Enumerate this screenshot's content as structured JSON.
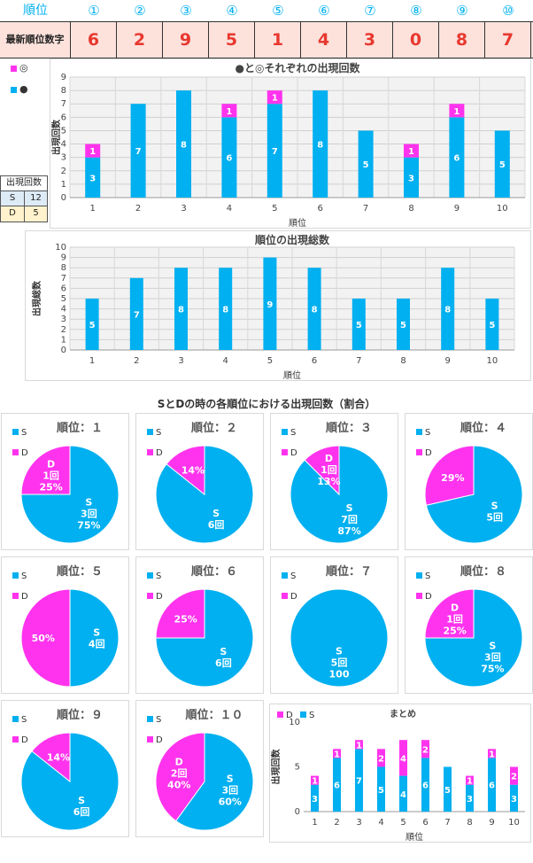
{
  "header": {
    "rank_label": "順位",
    "ranks": [
      "①",
      "②",
      "③",
      "④",
      "⑤",
      "⑥",
      "⑦",
      "⑧",
      "⑨",
      "⑩"
    ],
    "latest_label": "最新順位数字",
    "latest_digits": [
      "6",
      "2",
      "9",
      "5",
      "1",
      "4",
      "3",
      "0",
      "8",
      "7"
    ]
  },
  "colors": {
    "s": "#00b0f0",
    "d": "#ff33ee",
    "header_text": "#00b0f0",
    "digit": "#e8382f",
    "row_bg": "#fde2dc"
  },
  "side_table": {
    "header": "出現回数",
    "rows": [
      {
        "label": "S",
        "value": "12"
      },
      {
        "label": "D",
        "value": "5"
      }
    ]
  },
  "chart1_legend": {
    "d_symbol": "◎",
    "s_symbol": "●"
  },
  "pies_title": "SとDの時の各順位における出現回数（割合）",
  "pie_legend": {
    "s": "S",
    "d": "D"
  },
  "pies": [
    {
      "title": "順位：１",
      "s": 3,
      "d": 1,
      "s_label": [
        "S",
        "3回",
        "75%"
      ],
      "d_label": [
        "D",
        "1回",
        "25%"
      ]
    },
    {
      "title": "順位：２",
      "s": 6,
      "d": 1,
      "s_label": [
        "S",
        "6回"
      ],
      "d_label": [
        "14%"
      ]
    },
    {
      "title": "順位：３",
      "s": 7,
      "d": 1,
      "s_label": [
        "S",
        "7回",
        "87%"
      ],
      "d_label": [
        "D",
        "1回",
        "13%"
      ]
    },
    {
      "title": "順位：４",
      "s": 5,
      "d": 2,
      "s_label": [
        "S",
        "5回"
      ],
      "d_label": [
        "29%"
      ]
    },
    {
      "title": "順位：５",
      "s": 4,
      "d": 4,
      "s_label": [
        "S",
        "4回"
      ],
      "d_label": [
        "50%"
      ]
    },
    {
      "title": "順位：６",
      "s": 6,
      "d": 2,
      "s_label": [
        "S",
        "6回"
      ],
      "d_label": [
        "25%"
      ]
    },
    {
      "title": "順位：７",
      "s": 5,
      "d": 0,
      "s_label": [
        "S",
        "5回",
        "100"
      ],
      "d_label": []
    },
    {
      "title": "順位：８",
      "s": 3,
      "d": 1,
      "s_label": [
        "S",
        "3回",
        "75%"
      ],
      "d_label": [
        "D",
        "1回",
        "25%"
      ]
    },
    {
      "title": "順位：９",
      "s": 6,
      "d": 1,
      "s_label": [
        "S",
        "6回"
      ],
      "d_label": [
        "14%"
      ]
    },
    {
      "title": "順位：１０",
      "s": 3,
      "d": 2,
      "s_label": [
        "S",
        "3回",
        "60%"
      ],
      "d_label": [
        "D",
        "2回",
        "40%"
      ]
    }
  ],
  "chart_data": [
    {
      "type": "bar",
      "stacked": true,
      "title": "●と◎それぞれの出現回数",
      "xlabel": "順位",
      "ylabel": "出現回数",
      "categories": [
        "1",
        "2",
        "3",
        "4",
        "5",
        "6",
        "7",
        "8",
        "9",
        "10"
      ],
      "ylim": [
        0,
        9
      ],
      "grid": true,
      "legend": "top-left",
      "series": [
        {
          "name": "●",
          "values": [
            3,
            7,
            8,
            6,
            7,
            8,
            5,
            3,
            6,
            5
          ]
        },
        {
          "name": "◎",
          "values": [
            1,
            0,
            0,
            1,
            1,
            0,
            0,
            1,
            1,
            0
          ]
        }
      ]
    },
    {
      "type": "bar",
      "title": "順位の出現総数",
      "xlabel": "順位",
      "ylabel": "出現総数",
      "categories": [
        "1",
        "2",
        "3",
        "4",
        "5",
        "6",
        "7",
        "8",
        "9",
        "10"
      ],
      "values": [
        5,
        7,
        8,
        8,
        9,
        8,
        5,
        5,
        8,
        5
      ],
      "ylim": [
        0,
        10
      ],
      "grid": true
    },
    {
      "type": "bar",
      "stacked": true,
      "title": "まとめ",
      "xlabel": "順位",
      "ylabel": "出現回数",
      "categories": [
        "1",
        "2",
        "3",
        "4",
        "5",
        "6",
        "7",
        "8",
        "9",
        "10"
      ],
      "ylim": [
        0,
        10
      ],
      "legend": "top-left",
      "series": [
        {
          "name": "S",
          "values": [
            3,
            6,
            7,
            5,
            4,
            6,
            5,
            3,
            6,
            3
          ]
        },
        {
          "name": "D",
          "values": [
            1,
            1,
            1,
            2,
            4,
            2,
            0,
            1,
            1,
            2
          ]
        }
      ]
    }
  ]
}
